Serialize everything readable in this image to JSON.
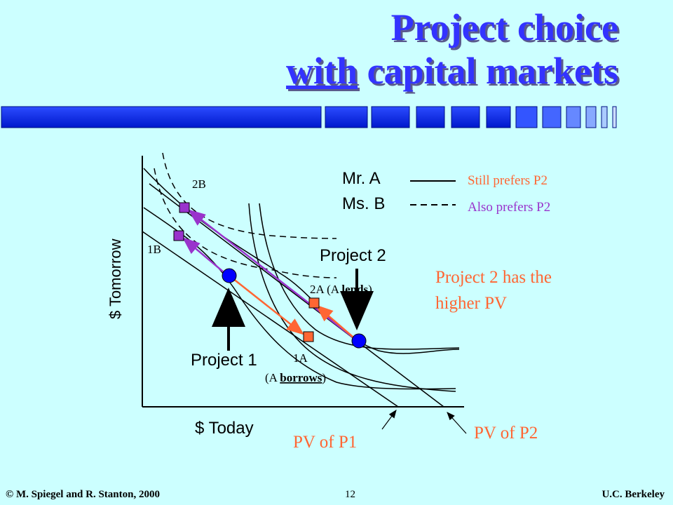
{
  "title": {
    "line1": "Project choice",
    "line2_underlined": "with",
    "line2_rest": " capital markets"
  },
  "diagram": {
    "x_axis_label": "$ Today",
    "y_axis_label": "$ Tomorrow",
    "points": {
      "p2b": "2B",
      "p1b": "1B",
      "p2a": "2A (A ",
      "p2a_bold": "lends",
      "p2a_end": ")",
      "p1a": "1A",
      "p1a_sub_open": "(A ",
      "p1a_bold": "borrows",
      "p1a_sub_close": ")"
    },
    "legend": {
      "mr_a": "Mr. A",
      "ms_b": "Ms. B",
      "still": "Still prefers P2",
      "also": "Also prefers P2"
    },
    "project1": "Project 1",
    "project2": "Project 2",
    "note_line1": "Project 2 has the",
    "note_line2": "higher PV",
    "pv_p1": "PV of  P1",
    "pv_p2": "PV of P2",
    "colors": {
      "orange": "#FF6633",
      "purple": "#9933CC",
      "blue": "#0000FF",
      "legend_orange": "#FF6633",
      "legend_purple": "#9933CC"
    }
  },
  "footer": {
    "left": "© M. Spiegel and R. Stanton, 2000",
    "page": "12",
    "right": "U.C. Berkeley"
  }
}
